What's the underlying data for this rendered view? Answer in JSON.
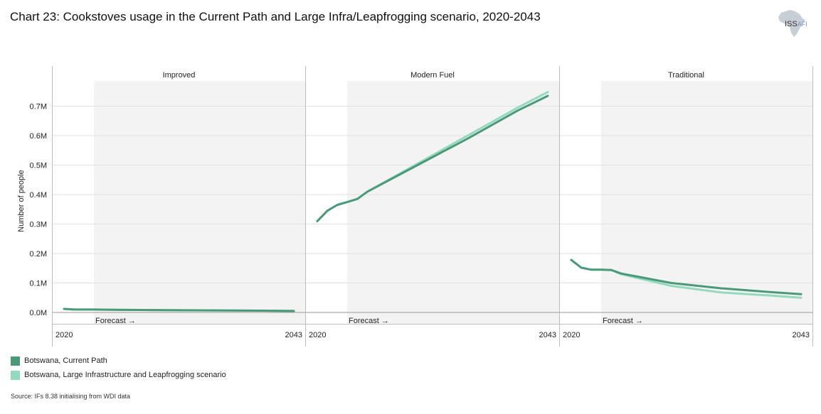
{
  "header": {
    "title": "Chart 23: Cookstoves usage in the Current Path and Large Infra/Leapfrogging scenario, 2020-2043",
    "logo_text": "ISS",
    "logo_subtext": "AFI"
  },
  "legend": {
    "items": [
      {
        "label": "Botswana, Current Path",
        "color": "#4a9a7a"
      },
      {
        "label": "Botswana, Large Infrastructure and Leapfrogging scenario",
        "color": "#93d9be"
      }
    ]
  },
  "source": "Source: IFs 8.38 initialising from WDI data",
  "chart_data": {
    "type": "line",
    "ylabel": "Number of people",
    "xlabel": "",
    "ylim": [
      0,
      0.78
    ],
    "yticks": [
      {
        "v": 0,
        "label": "0.0M"
      },
      {
        "v": 0.1,
        "label": "0.1M"
      },
      {
        "v": 0.2,
        "label": "0.2M"
      },
      {
        "v": 0.3,
        "label": "0.3M"
      },
      {
        "v": 0.4,
        "label": "0.4M"
      },
      {
        "v": 0.5,
        "label": "0.5M"
      },
      {
        "v": 0.6,
        "label": "0.6M"
      },
      {
        "v": 0.7,
        "label": "0.7M"
      }
    ],
    "x_ticks": [
      "2020",
      "2043"
    ],
    "forecast_start": 2023,
    "forecast_label": "Forecast →",
    "panels": [
      {
        "title": "Improved",
        "series": [
          {
            "name": "Botswana, Current Path",
            "color": "#4a9a7a",
            "x": [
              2020,
              2021,
              2022,
              2023,
              2025,
              2030,
              2035,
              2040,
              2043
            ],
            "y": [
              0.012,
              0.01,
              0.01,
              0.01,
              0.009,
              0.008,
              0.007,
              0.006,
              0.005
            ]
          },
          {
            "name": "Botswana, Large Infrastructure and Leapfrogging scenario",
            "color": "#93d9be",
            "x": [
              2020,
              2021,
              2022,
              2023,
              2025,
              2030,
              2035,
              2040,
              2043
            ],
            "y": [
              0.012,
              0.01,
              0.01,
              0.01,
              0.009,
              0.008,
              0.007,
              0.006,
              0.005
            ]
          }
        ]
      },
      {
        "title": "Modern Fuel",
        "series": [
          {
            "name": "Botswana, Current Path",
            "color": "#4a9a7a",
            "x": [
              2020,
              2021,
              2022,
              2023,
              2024,
              2025,
              2030,
              2035,
              2040,
              2043
            ],
            "y": [
              0.31,
              0.345,
              0.365,
              0.375,
              0.385,
              0.41,
              0.5,
              0.59,
              0.685,
              0.735
            ]
          },
          {
            "name": "Botswana, Large Infrastructure and Leapfrogging scenario",
            "color": "#93d9be",
            "x": [
              2020,
              2021,
              2022,
              2023,
              2024,
              2025,
              2030,
              2035,
              2040,
              2043
            ],
            "y": [
              0.31,
              0.345,
              0.365,
              0.375,
              0.385,
              0.41,
              0.505,
              0.6,
              0.695,
              0.748
            ]
          }
        ]
      },
      {
        "title": "Traditional",
        "series": [
          {
            "name": "Botswana, Current Path",
            "color": "#4a9a7a",
            "x": [
              2020,
              2021,
              2022,
              2023,
              2024,
              2025,
              2030,
              2035,
              2040,
              2043
            ],
            "y": [
              0.178,
              0.152,
              0.145,
              0.145,
              0.144,
              0.132,
              0.1,
              0.082,
              0.069,
              0.062
            ]
          },
          {
            "name": "Botswana, Large Infrastructure and Leapfrogging scenario",
            "color": "#93d9be",
            "x": [
              2020,
              2021,
              2022,
              2023,
              2024,
              2025,
              2030,
              2035,
              2040,
              2043
            ],
            "y": [
              0.178,
              0.152,
              0.145,
              0.145,
              0.144,
              0.13,
              0.09,
              0.068,
              0.057,
              0.05
            ]
          }
        ]
      }
    ]
  }
}
